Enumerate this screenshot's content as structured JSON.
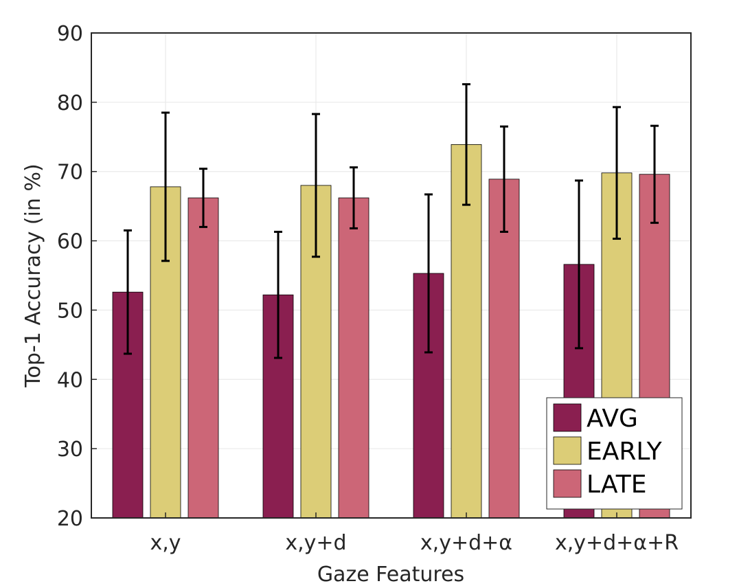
{
  "chart_data": {
    "type": "bar",
    "title": "",
    "xlabel": "Gaze Features",
    "ylabel": "Top-1 Accuracy (in %)",
    "ylim": [
      20,
      90
    ],
    "yticks": [
      20,
      30,
      40,
      50,
      60,
      70,
      80,
      90
    ],
    "grid": true,
    "legend_position": "bottom-right",
    "categories": [
      "x,y",
      "x,y+d",
      "x,y+d+α",
      "x,y+d+α+R"
    ],
    "series": [
      {
        "name": "AVG",
        "color": "#8a1f50",
        "values": [
          52.6,
          52.2,
          55.3,
          56.6
        ],
        "errors": [
          8.9,
          9.1,
          11.4,
          12.1
        ]
      },
      {
        "name": "EARLY",
        "color": "#dccd77",
        "values": [
          67.8,
          68.0,
          73.9,
          69.8
        ],
        "errors": [
          10.7,
          10.3,
          8.7,
          9.5
        ]
      },
      {
        "name": "LATE",
        "color": "#cc6677",
        "values": [
          66.2,
          66.2,
          68.9,
          69.6
        ],
        "errors": [
          4.2,
          4.4,
          7.6,
          7.0
        ]
      }
    ]
  }
}
